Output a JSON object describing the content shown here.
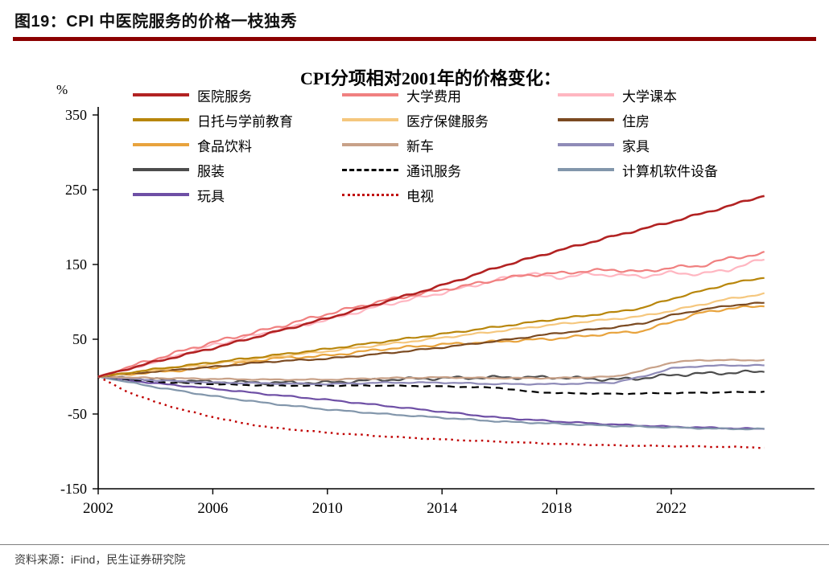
{
  "page": {
    "figure_title": "图19：CPI 中医院服务的价格一枝独秀",
    "source_note": "资料来源：iFind，民生证券研究院"
  },
  "colors": {
    "accent_red": "#8B0000",
    "axis": "#000000",
    "footer_divider": "#7F7F7F"
  },
  "chart_data": {
    "type": "line",
    "title": "CPI分项相对2001年的价格变化：",
    "xlabel": "",
    "ylabel": "%",
    "ylim": [
      -150,
      350
    ],
    "yticks": [
      350,
      250,
      150,
      50,
      -50,
      -150
    ],
    "xticks": [
      2002,
      2006,
      2010,
      2014,
      2018,
      2022
    ],
    "xlim": [
      2002,
      2027
    ],
    "grid": false,
    "legend_position": "top",
    "x_unit": "year",
    "y_unit": "percent_change_vs_2001",
    "series": [
      {
        "name": "医院服务",
        "color": "#B22222",
        "line_style": "solid",
        "width": 2.6,
        "wiggle": 1.5,
        "anchors": [
          [
            2002,
            0
          ],
          [
            2004,
            20
          ],
          [
            2006,
            38
          ],
          [
            2008,
            58
          ],
          [
            2010,
            78
          ],
          [
            2012,
            100
          ],
          [
            2014,
            122
          ],
          [
            2016,
            147
          ],
          [
            2018,
            168
          ],
          [
            2020,
            188
          ],
          [
            2022,
            207
          ],
          [
            2024,
            228
          ],
          [
            2025.3,
            243
          ]
        ]
      },
      {
        "name": "大学费用",
        "color": "#F08080",
        "line_style": "solid",
        "width": 2.2,
        "wiggle": 2.4,
        "anchors": [
          [
            2002,
            0
          ],
          [
            2004,
            24
          ],
          [
            2006,
            46
          ],
          [
            2008,
            64
          ],
          [
            2010,
            84
          ],
          [
            2012,
            102
          ],
          [
            2014,
            116
          ],
          [
            2016,
            130
          ],
          [
            2017,
            136
          ],
          [
            2018,
            138
          ],
          [
            2019,
            141
          ],
          [
            2020,
            143
          ],
          [
            2021,
            140
          ],
          [
            2022,
            146
          ],
          [
            2023,
            148
          ],
          [
            2024,
            158
          ],
          [
            2025.3,
            165
          ]
        ]
      },
      {
        "name": "大学课本",
        "color": "#FFB6C1",
        "line_style": "solid",
        "width": 2.2,
        "wiggle": 2.4,
        "anchors": [
          [
            2002,
            0
          ],
          [
            2004,
            20
          ],
          [
            2006,
            42
          ],
          [
            2008,
            60
          ],
          [
            2010,
            76
          ],
          [
            2012,
            96
          ],
          [
            2014,
            112
          ],
          [
            2016,
            130
          ],
          [
            2017,
            139
          ],
          [
            2018,
            132
          ],
          [
            2019,
            137
          ],
          [
            2020,
            136
          ],
          [
            2021,
            134
          ],
          [
            2022,
            139
          ],
          [
            2023,
            137
          ],
          [
            2024,
            143
          ],
          [
            2025.3,
            158
          ]
        ]
      },
      {
        "name": "日托与学前教育",
        "color": "#B8860B",
        "line_style": "solid",
        "width": 2.2,
        "wiggle": 1.2,
        "anchors": [
          [
            2002,
            0
          ],
          [
            2004,
            10
          ],
          [
            2006,
            19
          ],
          [
            2008,
            28
          ],
          [
            2010,
            37
          ],
          [
            2012,
            47
          ],
          [
            2014,
            57
          ],
          [
            2016,
            67
          ],
          [
            2018,
            77
          ],
          [
            2020,
            86
          ],
          [
            2021,
            92
          ],
          [
            2022,
            104
          ],
          [
            2023,
            114
          ],
          [
            2024,
            124
          ],
          [
            2025.3,
            133
          ]
        ]
      },
      {
        "name": "医疗保健服务",
        "color": "#F5C77E",
        "line_style": "solid",
        "width": 2.2,
        "wiggle": 1.2,
        "anchors": [
          [
            2002,
            0
          ],
          [
            2004,
            9
          ],
          [
            2006,
            17
          ],
          [
            2008,
            26
          ],
          [
            2010,
            34
          ],
          [
            2012,
            43
          ],
          [
            2014,
            52
          ],
          [
            2016,
            61
          ],
          [
            2018,
            70
          ],
          [
            2020,
            77
          ],
          [
            2021,
            81
          ],
          [
            2022,
            88
          ],
          [
            2023,
            96
          ],
          [
            2024,
            104
          ],
          [
            2025.3,
            111
          ]
        ]
      },
      {
        "name": "住房",
        "color": "#7B4A21",
        "line_style": "solid",
        "width": 2.2,
        "wiggle": 1.0,
        "anchors": [
          [
            2002,
            0
          ],
          [
            2004,
            7
          ],
          [
            2006,
            13
          ],
          [
            2008,
            20
          ],
          [
            2010,
            24
          ],
          [
            2012,
            31
          ],
          [
            2014,
            39
          ],
          [
            2016,
            48
          ],
          [
            2018,
            58
          ],
          [
            2020,
            66
          ],
          [
            2021,
            71
          ],
          [
            2022,
            82
          ],
          [
            2023,
            89
          ],
          [
            2024,
            95
          ],
          [
            2025.3,
            99
          ]
        ]
      },
      {
        "name": "食品饮料",
        "color": "#E8A33D",
        "line_style": "solid",
        "width": 2.2,
        "wiggle": 1.8,
        "anchors": [
          [
            2002,
            0
          ],
          [
            2004,
            6
          ],
          [
            2006,
            12
          ],
          [
            2008,
            24
          ],
          [
            2009,
            26
          ],
          [
            2010,
            28
          ],
          [
            2012,
            37
          ],
          [
            2014,
            43
          ],
          [
            2016,
            47
          ],
          [
            2018,
            51
          ],
          [
            2020,
            58
          ],
          [
            2021,
            61
          ],
          [
            2022,
            73
          ],
          [
            2023,
            85
          ],
          [
            2024,
            91
          ],
          [
            2025.3,
            95
          ]
        ]
      },
      {
        "name": "新车",
        "color": "#C8A188",
        "line_style": "solid",
        "width": 2.2,
        "wiggle": 0.8,
        "anchors": [
          [
            2002,
            0
          ],
          [
            2004,
            -2
          ],
          [
            2006,
            -3
          ],
          [
            2008,
            -4
          ],
          [
            2010,
            -4
          ],
          [
            2012,
            -2
          ],
          [
            2014,
            -1
          ],
          [
            2016,
            -2
          ],
          [
            2018,
            -2
          ],
          [
            2020,
            0
          ],
          [
            2021,
            8
          ],
          [
            2022,
            19
          ],
          [
            2023,
            22
          ],
          [
            2024,
            22
          ],
          [
            2025.3,
            22
          ]
        ]
      },
      {
        "name": "家具",
        "color": "#8F8BB8",
        "line_style": "solid",
        "width": 2.2,
        "wiggle": 0.8,
        "anchors": [
          [
            2002,
            0
          ],
          [
            2004,
            -5
          ],
          [
            2006,
            -8
          ],
          [
            2008,
            -9
          ],
          [
            2010,
            -10
          ],
          [
            2012,
            -8
          ],
          [
            2014,
            -8
          ],
          [
            2016,
            -10
          ],
          [
            2018,
            -10
          ],
          [
            2020,
            -8
          ],
          [
            2021,
            0
          ],
          [
            2022,
            11
          ],
          [
            2023,
            14
          ],
          [
            2024,
            15
          ],
          [
            2025.3,
            15
          ]
        ]
      },
      {
        "name": "服装",
        "color": "#4D4D4D",
        "line_style": "solid",
        "width": 2.2,
        "wiggle": 2.4,
        "anchors": [
          [
            2002,
            0
          ],
          [
            2004,
            -4
          ],
          [
            2006,
            -7
          ],
          [
            2008,
            -8
          ],
          [
            2010,
            -8
          ],
          [
            2012,
            -4
          ],
          [
            2014,
            -2
          ],
          [
            2016,
            -1
          ],
          [
            2018,
            -1
          ],
          [
            2020,
            -4
          ],
          [
            2021,
            -2
          ],
          [
            2022,
            2
          ],
          [
            2023,
            4
          ],
          [
            2024,
            5
          ],
          [
            2025.3,
            7
          ]
        ]
      },
      {
        "name": "通讯服务",
        "color": "#000000",
        "line_style": "dashed",
        "width": 2.2,
        "wiggle": 0.6,
        "anchors": [
          [
            2002,
            0
          ],
          [
            2004,
            -7
          ],
          [
            2006,
            -10
          ],
          [
            2008,
            -12
          ],
          [
            2010,
            -12
          ],
          [
            2012,
            -12
          ],
          [
            2014,
            -13
          ],
          [
            2016,
            -15
          ],
          [
            2017,
            -20
          ],
          [
            2018,
            -22
          ],
          [
            2020,
            -23
          ],
          [
            2022,
            -22
          ],
          [
            2024,
            -21
          ],
          [
            2025.3,
            -20
          ]
        ]
      },
      {
        "name": "计算机软件设备",
        "color": "#8296AB",
        "line_style": "solid",
        "width": 2.2,
        "wiggle": 0.9,
        "anchors": [
          [
            2002,
            0
          ],
          [
            2004,
            -14
          ],
          [
            2006,
            -26
          ],
          [
            2008,
            -36
          ],
          [
            2010,
            -44
          ],
          [
            2012,
            -50
          ],
          [
            2014,
            -55
          ],
          [
            2016,
            -60
          ],
          [
            2018,
            -63
          ],
          [
            2020,
            -66
          ],
          [
            2022,
            -68
          ],
          [
            2024,
            -70
          ],
          [
            2025.3,
            -70
          ]
        ]
      },
      {
        "name": "玩具",
        "color": "#6E4FA5",
        "line_style": "solid",
        "width": 2.2,
        "wiggle": 0.9,
        "anchors": [
          [
            2002,
            0
          ],
          [
            2004,
            -9
          ],
          [
            2006,
            -16
          ],
          [
            2008,
            -24
          ],
          [
            2010,
            -31
          ],
          [
            2012,
            -39
          ],
          [
            2014,
            -47
          ],
          [
            2016,
            -55
          ],
          [
            2018,
            -60
          ],
          [
            2020,
            -64
          ],
          [
            2022,
            -67
          ],
          [
            2024,
            -69
          ],
          [
            2025.3,
            -70
          ]
        ]
      },
      {
        "name": "电视",
        "color": "#C00000",
        "line_style": "dotted",
        "width": 2.4,
        "wiggle": 0.6,
        "anchors": [
          [
            2002,
            0
          ],
          [
            2003,
            -20
          ],
          [
            2004,
            -34
          ],
          [
            2005,
            -45
          ],
          [
            2006,
            -54
          ],
          [
            2007,
            -62
          ],
          [
            2008,
            -68
          ],
          [
            2010,
            -75
          ],
          [
            2012,
            -80
          ],
          [
            2014,
            -84
          ],
          [
            2016,
            -87
          ],
          [
            2018,
            -90
          ],
          [
            2020,
            -92
          ],
          [
            2022,
            -93
          ],
          [
            2024,
            -94
          ],
          [
            2025.3,
            -95
          ]
        ]
      }
    ]
  }
}
